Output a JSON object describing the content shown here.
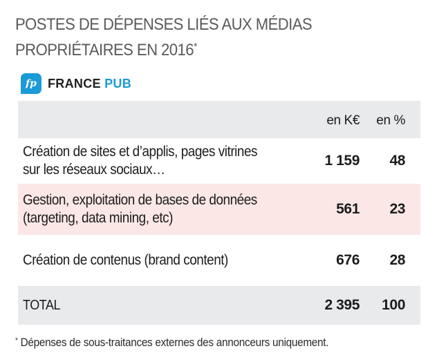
{
  "title": {
    "line1": "POSTES DE DÉPENSES LIÉS AUX MÉDIAS",
    "line2": "PROPRIÉTAIRES EN 2016",
    "asterisk": "*"
  },
  "logo": {
    "mark": "fp",
    "word1": "FRANCE",
    "word2": "PUB",
    "accent_color": "#1a9bd7"
  },
  "table": {
    "headers": {
      "keur": "en K€",
      "pct": "en %"
    },
    "rows": [
      {
        "label_line1": "Création de sites et d’applis, pages vitrines",
        "label_line2": "sur les réseaux sociaux…",
        "keur": "1 159",
        "pct": "48"
      },
      {
        "label_line1": "Gestion, exploitation de bases de données",
        "label_line2": "(targeting, data mining, etc)",
        "keur": "561",
        "pct": "23"
      },
      {
        "label_line1": "Création de contenus (brand content)",
        "label_line2": "",
        "keur": "676",
        "pct": "28"
      }
    ],
    "total": {
      "label": "TOTAL",
      "keur": "2 395",
      "pct": "100"
    },
    "colors": {
      "header_bg": "#e9eaec",
      "highlight_bg": "#fbe7e6"
    }
  },
  "footnote": {
    "asterisk": "*",
    "text": " Dépenses de sous-traitances externes des annonceurs uniquement."
  }
}
